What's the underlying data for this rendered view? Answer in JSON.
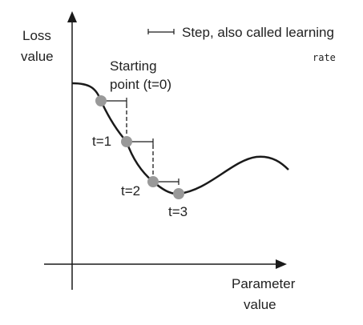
{
  "axes": {
    "y_label_line1": "Loss",
    "y_label_line2": "value",
    "x_label_line1": "Parameter",
    "x_label_line2": "value"
  },
  "legend": {
    "text_line1": "Step, also called learning",
    "text_line2": "rate"
  },
  "points": [
    {
      "label_line1": "Starting",
      "label_line2": "point (t=0)"
    },
    {
      "label_line1": "t=1"
    },
    {
      "label_line1": "t=2"
    },
    {
      "label_line1": "t=3"
    }
  ],
  "colors": {
    "axis": "#1a1a1a",
    "curve": "#1a1a1a",
    "point": "#999999",
    "text": "#222222"
  }
}
